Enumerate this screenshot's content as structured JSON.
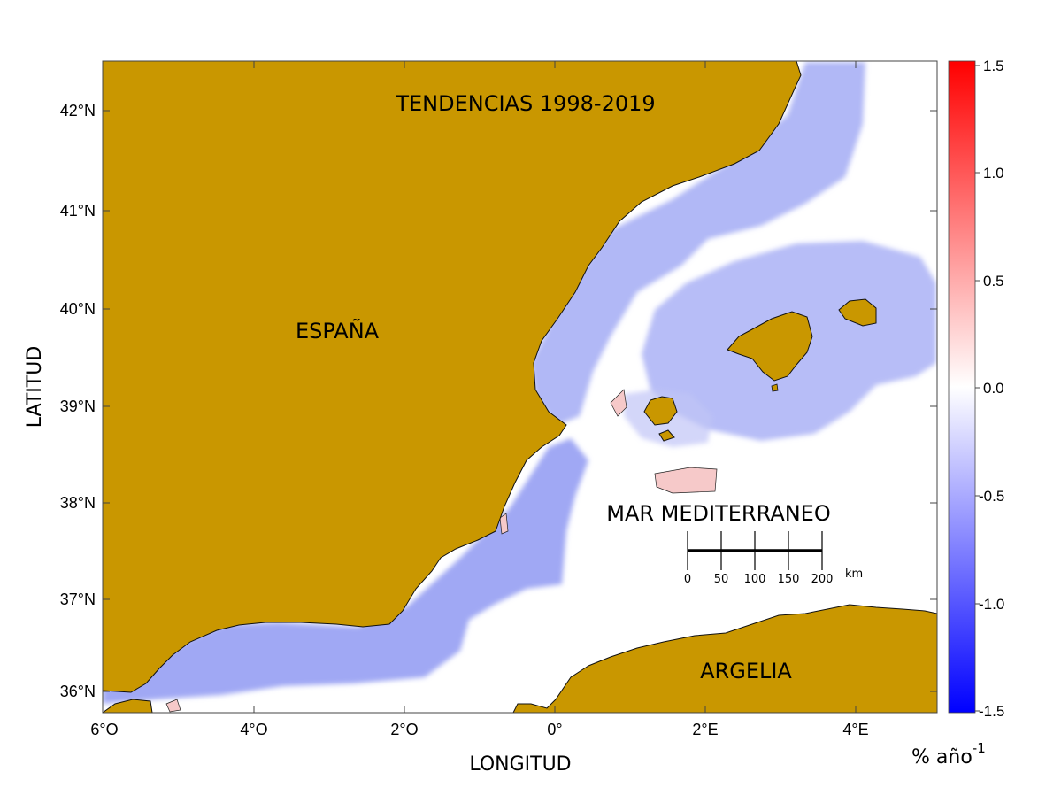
{
  "map": {
    "title": "TENDENCIAS 1998-2019",
    "labels": {
      "spain": "ESPAÑA",
      "algeria": "ARGELIA",
      "sea": "MAR MEDITERRANEO"
    },
    "x_axis": {
      "title": "LONGITUD",
      "ticks": [
        "6°O",
        "4°O",
        "2°O",
        "0°",
        "2°E",
        "4°E"
      ]
    },
    "y_axis": {
      "title": "LATITUD",
      "ticks": [
        "42°N",
        "41°N",
        "40°N",
        "39°N",
        "38°N",
        "37°N",
        "36°N"
      ]
    },
    "scale_bar": {
      "ticks": [
        "0",
        "50",
        "100",
        "150",
        "200"
      ],
      "unit": "km"
    },
    "colorbar": {
      "ticks": [
        "1.5",
        "1.0",
        "0.5",
        "0.0",
        "-0.5",
        "-1.0",
        "-1.5"
      ],
      "unit_base": "% año",
      "unit_exp": "-1",
      "range": [
        -1.5,
        1.5
      ]
    },
    "colors": {
      "land": "#c99700",
      "sea_negative": "#4a5ef0",
      "sea_positive": "#ff2b2b",
      "neutral": "#ffffff"
    }
  }
}
